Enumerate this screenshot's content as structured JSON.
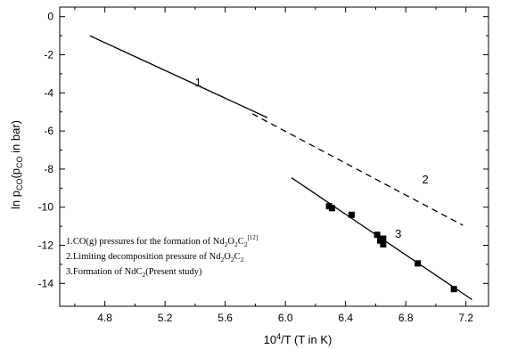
{
  "chart_data": {
    "type": "scatter",
    "title": "",
    "xlabel": {
      "base": "10",
      "sup": "4",
      "rest": "/T (T in K)"
    },
    "ylabel": {
      "prefix": "ln p",
      "sub1": "CO",
      "mid": "(p",
      "sub2": "CO",
      "suffix": " in bar)"
    },
    "xlim": [
      4.5,
      7.35
    ],
    "ylim": [
      -15.2,
      0.5
    ],
    "x_ticks": [
      4.8,
      5.2,
      5.6,
      6.0,
      6.4,
      6.8,
      7.2
    ],
    "x_tick_labels": [
      "4.8",
      "5.2",
      "5.6",
      "6.0",
      "6.4",
      "6.8",
      "7.2"
    ],
    "y_ticks": [
      0,
      -2,
      -4,
      -6,
      -8,
      -10,
      -12,
      -14
    ],
    "y_tick_labels": [
      "0",
      "-2",
      "-4",
      "-6",
      "-8",
      "-10",
      "-12",
      "-14"
    ],
    "series": [
      {
        "name": "1",
        "style": "solid",
        "x": [
          4.7,
          5.88
        ],
        "y": [
          -1.0,
          -5.3
        ]
      },
      {
        "name": "2",
        "style": "dashed",
        "x": [
          5.78,
          7.18
        ],
        "y": [
          -5.1,
          -10.95
        ]
      },
      {
        "name": "3",
        "style": "solid",
        "x": [
          6.04,
          7.24
        ],
        "y": [
          -8.45,
          -14.85
        ]
      }
    ],
    "points": [
      {
        "x": 6.29,
        "y": -9.95
      },
      {
        "x": 6.31,
        "y": -10.05
      },
      {
        "x": 6.44,
        "y": -10.4
      },
      {
        "x": 6.61,
        "y": -11.45
      },
      {
        "x": 6.63,
        "y": -11.75
      },
      {
        "x": 6.65,
        "y": -11.65
      },
      {
        "x": 6.65,
        "y": -11.95
      },
      {
        "x": 6.88,
        "y": -12.95
      },
      {
        "x": 7.12,
        "y": -14.3
      }
    ],
    "series_labels": [
      {
        "text": "1",
        "x": 5.42,
        "y": -3.65
      },
      {
        "text": "2",
        "x": 6.93,
        "y": -8.75
      },
      {
        "text": "3",
        "x": 6.75,
        "y": -11.6
      }
    ],
    "legend": {
      "placement": "bottom-left",
      "items": [
        {
          "parts": [
            {
              "t": "1.CO(g) pressures for the formation of Nd"
            },
            {
              "t": "2",
              "sub": true
            },
            {
              "t": "O"
            },
            {
              "t": "2",
              "sub": true
            },
            {
              "t": "C"
            },
            {
              "t": "2",
              "sub": true
            },
            {
              "t": "[12]",
              "sup": true
            }
          ]
        },
        {
          "parts": [
            {
              "t": "2.Limiting decomposition pressure of Nd"
            },
            {
              "t": "2",
              "sub": true
            },
            {
              "t": "O"
            },
            {
              "t": "2",
              "sub": true
            },
            {
              "t": "C"
            },
            {
              "t": "2",
              "sub": true
            }
          ]
        },
        {
          "parts": [
            {
              "t": "3.Formation of NdC"
            },
            {
              "t": "2",
              "sub": true
            },
            {
              "t": "(Present study)"
            }
          ]
        }
      ]
    }
  }
}
